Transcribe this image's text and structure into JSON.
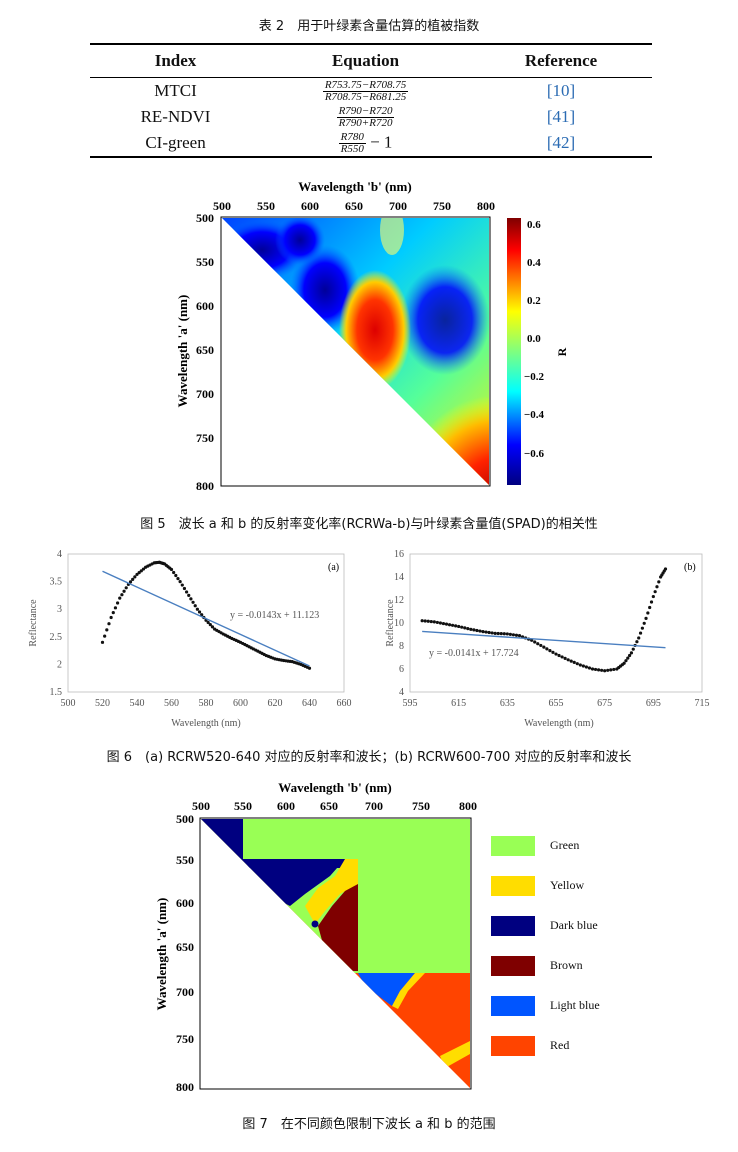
{
  "table2": {
    "caption": "表 2　用于叶绿素含量估算的植被指数",
    "headers": [
      "Index",
      "Equation",
      "Reference"
    ],
    "rows": [
      {
        "index": "MTCI",
        "eq_num": "R753.75−R708.75",
        "eq_den": "R708.75−R681.25",
        "eq_tail": "",
        "ref": "[10]"
      },
      {
        "index": "RE-NDVI",
        "eq_num": "R790−R720",
        "eq_den": "R790+R720",
        "eq_tail": "",
        "ref": "[41]"
      },
      {
        "index": "CI-green",
        "eq_num": "R780",
        "eq_den": "R550",
        "eq_tail": "− 1",
        "ref": "[42]"
      }
    ]
  },
  "fig5": {
    "caption": "图 5　波长 a 和 b 的反射率变化率(RCRWa-b)与叶绿素含量值(SPAD)的相关性",
    "xlabel": "Wavelength 'b' (nm)",
    "ylabel": "Wavelength 'a' (nm)",
    "x_ticks": [
      "500",
      "550",
      "600",
      "650",
      "700",
      "750",
      "800"
    ],
    "y_ticks": [
      "500",
      "550",
      "600",
      "650",
      "700",
      "750",
      "800"
    ],
    "colorbar_label": "R",
    "colorbar_ticks": [
      "0.6",
      "0.4",
      "0.2",
      "0.0",
      "−0.2",
      "−0.4",
      "−0.6"
    ]
  },
  "fig6": {
    "caption": "图 6　(a) RCRW520-640 对应的反射率和波长；(b) RCRW600-700 对应的反射率和波长",
    "a": {
      "panel": "(a)",
      "xlabel": "Wavelength (nm)",
      "ylabel": "Reflectance",
      "equation": "y = -0.0143x + 11.123"
    },
    "b": {
      "panel": "(b)",
      "xlabel": "Wavelength (nm)",
      "ylabel": "Reflectance",
      "equation": "y = -0.0141x + 17.724"
    }
  },
  "fig7": {
    "caption": "图 7　在不同颜色限制下波长 a 和 b 的范围",
    "xlabel": "Wavelength 'b' (nm)",
    "ylabel": "Wavelength 'a' (nm)",
    "x_ticks": [
      "500",
      "550",
      "600",
      "650",
      "700",
      "750",
      "800"
    ],
    "y_ticks": [
      "500",
      "550",
      "600",
      "650",
      "700",
      "750",
      "800"
    ],
    "legend": [
      {
        "label": "Green",
        "color": "#99ff55"
      },
      {
        "label": "Yellow",
        "color": "#ffdd00"
      },
      {
        "label": "Dark blue",
        "color": "#000080"
      },
      {
        "label": "Brown",
        "color": "#7f0000"
      },
      {
        "label": "Light blue",
        "color": "#0055ff"
      },
      {
        "label": "Red",
        "color": "#ff4400"
      }
    ]
  },
  "chart_data": [
    {
      "type": "scatter",
      "panel": "(a)",
      "xlabel": "Wavelength (nm)",
      "ylabel": "Reflectance",
      "xlim": [
        500,
        660
      ],
      "ylim": [
        1.5,
        4
      ],
      "x_ticks": [
        500,
        520,
        540,
        560,
        580,
        600,
        620,
        640,
        660
      ],
      "y_ticks": [
        1.5,
        2,
        2.5,
        3,
        3.5,
        4
      ],
      "series": [
        {
          "values_x": [
            520,
            525,
            530,
            535,
            540,
            545,
            550,
            553,
            556,
            560,
            565,
            570,
            575,
            580,
            585,
            590,
            595,
            600,
            605,
            610,
            615,
            620,
            625,
            630,
            635,
            640
          ],
          "values_y": [
            2.4,
            2.85,
            3.2,
            3.45,
            3.63,
            3.76,
            3.84,
            3.85,
            3.82,
            3.72,
            3.5,
            3.25,
            3.0,
            2.8,
            2.64,
            2.55,
            2.47,
            2.4,
            2.32,
            2.24,
            2.16,
            2.1,
            2.07,
            2.05,
            2.0,
            1.93
          ]
        }
      ],
      "trendline": {
        "slope": -0.0143,
        "intercept": 11.123,
        "x_range": [
          520,
          640
        ],
        "color": "#4a7fc0"
      },
      "annotation": "y = -0.0143x + 11.123"
    },
    {
      "type": "scatter",
      "panel": "(b)",
      "xlabel": "Wavelength (nm)",
      "ylabel": "Reflectance",
      "xlim": [
        595,
        715
      ],
      "ylim": [
        4,
        16
      ],
      "x_ticks": [
        595,
        615,
        635,
        655,
        675,
        695,
        715
      ],
      "y_ticks": [
        4,
        6,
        8,
        10,
        12,
        14,
        16
      ],
      "series": [
        {
          "values_x": [
            600,
            605,
            610,
            615,
            620,
            625,
            630,
            635,
            640,
            645,
            650,
            655,
            660,
            665,
            670,
            675,
            680,
            683,
            686,
            689,
            692,
            695,
            698,
            700
          ],
          "values_y": [
            10.2,
            10.1,
            9.9,
            9.7,
            9.45,
            9.25,
            9.1,
            9.05,
            8.9,
            8.5,
            7.9,
            7.3,
            6.8,
            6.35,
            6.0,
            5.85,
            6.0,
            6.5,
            7.4,
            8.7,
            10.4,
            12.3,
            14.0,
            14.7
          ]
        }
      ],
      "trendline": {
        "slope": -0.0141,
        "intercept": 17.724,
        "x_range": [
          600,
          700
        ],
        "color": "#4a7fc0"
      },
      "annotation": "y = -0.0141x + 17.724"
    }
  ]
}
